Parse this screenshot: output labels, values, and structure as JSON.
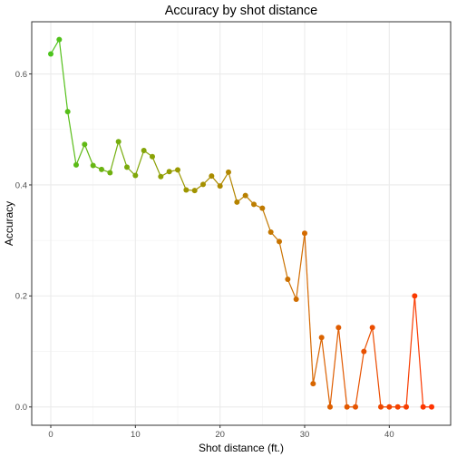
{
  "chart_data": {
    "type": "line",
    "title": "Accuracy by shot distance",
    "xlabel": "Shot distance (ft.)",
    "ylabel": "Accuracy",
    "xlim": [
      -2.25,
      47.25
    ],
    "ylim": [
      -0.033,
      0.694
    ],
    "x_ticks": [
      0,
      10,
      20,
      30,
      40
    ],
    "y_ticks": [
      0.0,
      0.2,
      0.4,
      0.6
    ],
    "x_tick_labels": [
      "0",
      "10",
      "20",
      "30",
      "40"
    ],
    "y_tick_labels": [
      "0.0",
      "0.2",
      "0.4",
      "0.6"
    ],
    "grid": true,
    "legend": "none",
    "color_scale": [
      "#4cc41d",
      "#999900",
      "#d46a00",
      "#ff3300"
    ],
    "x": [
      0,
      1,
      2,
      3,
      4,
      5,
      6,
      7,
      8,
      9,
      10,
      11,
      12,
      13,
      14,
      15,
      16,
      17,
      18,
      19,
      20,
      21,
      22,
      23,
      24,
      25,
      26,
      27,
      28,
      29,
      30,
      31,
      32,
      33,
      34,
      35,
      36,
      37,
      38,
      39,
      40,
      41,
      42,
      43,
      44,
      45
    ],
    "y": [
      0.636,
      0.662,
      0.532,
      0.436,
      0.473,
      0.435,
      0.428,
      0.422,
      0.478,
      0.432,
      0.417,
      0.462,
      0.451,
      0.415,
      0.424,
      0.427,
      0.391,
      0.39,
      0.401,
      0.416,
      0.398,
      0.423,
      0.369,
      0.381,
      0.365,
      0.358,
      0.315,
      0.298,
      0.23,
      0.194,
      0.313,
      0.042,
      0.125,
      0.0,
      0.143,
      0.0,
      0.0,
      0.1,
      0.143,
      0.0,
      0.0,
      0.0,
      0.0,
      0.2,
      0.0,
      0.0
    ]
  }
}
